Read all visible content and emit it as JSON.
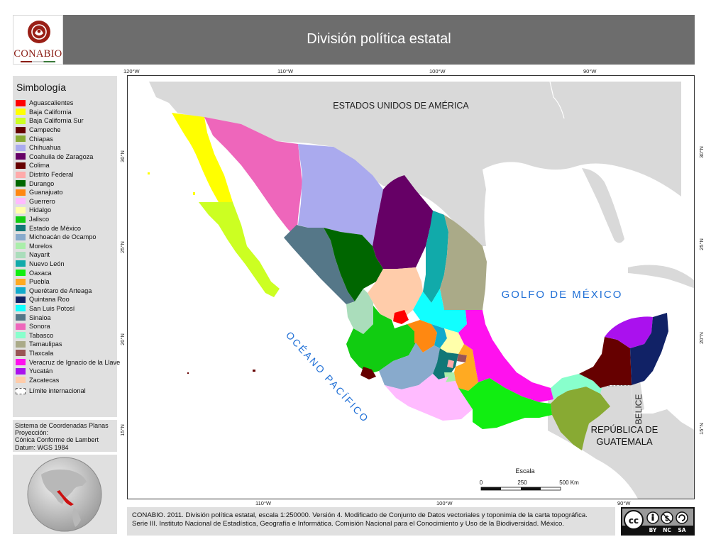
{
  "header": {
    "logo_text": "CONABIO",
    "title": "División política estatal"
  },
  "legend": {
    "title": "Simbología",
    "items": [
      {
        "label": "Aguascalientes",
        "color": "#ff0000"
      },
      {
        "label": "Baja California",
        "color": "#ffff00"
      },
      {
        "label": "Baja California Sur",
        "color": "#ccff22"
      },
      {
        "label": "Campeche",
        "color": "#660000"
      },
      {
        "label": "Chiapas",
        "color": "#88aa33"
      },
      {
        "label": "Chihuahua",
        "color": "#aaaaee"
      },
      {
        "label": "Coahuila de Zaragoza",
        "color": "#660066"
      },
      {
        "label": "Colima",
        "color": "#660000"
      },
      {
        "label": "Distrito Federal",
        "color": "#ffaaaa"
      },
      {
        "label": "Durango",
        "color": "#006600"
      },
      {
        "label": "Guanajuato",
        "color": "#ff8811"
      },
      {
        "label": "Guerrero",
        "color": "#ffbbff"
      },
      {
        "label": "Hidalgo",
        "color": "#ffffaa"
      },
      {
        "label": "Jalisco",
        "color": "#11cc11"
      },
      {
        "label": "Estado de México",
        "color": "#117777"
      },
      {
        "label": "Michoacán de Ocampo",
        "color": "#88aacc"
      },
      {
        "label": "Morelos",
        "color": "#aaeeaa"
      },
      {
        "label": "Nayarit",
        "color": "#aaddbb"
      },
      {
        "label": "Nuevo León",
        "color": "#11aaaa"
      },
      {
        "label": "Oaxaca",
        "color": "#11ee11"
      },
      {
        "label": "Puebla",
        "color": "#ffaa22"
      },
      {
        "label": "Querétaro de Arteaga",
        "color": "#11aacc"
      },
      {
        "label": "Quintana Roo",
        "color": "#112266"
      },
      {
        "label": "San Luis Potosí",
        "color": "#11ffff"
      },
      {
        "label": "Sinaloa",
        "color": "#557788"
      },
      {
        "label": "Sonora",
        "color": "#ee66bb"
      },
      {
        "label": "Tabasco",
        "color": "#88ffcc"
      },
      {
        "label": "Tamaulipas",
        "color": "#aaaa88"
      },
      {
        "label": "Tlaxcala",
        "color": "#995555"
      },
      {
        "label": "Veracruz de Ignacio de la Llave",
        "color": "#ff11ee"
      },
      {
        "label": "Yucatán",
        "color": "#aa11ee"
      },
      {
        "label": "Zacatecas",
        "color": "#ffccaa"
      }
    ],
    "limit_label": "Límite internacional"
  },
  "projection": {
    "lines": [
      "Sistema de Coordenadas Planas",
      "Proyección:",
      "Cónica Conforme de Lambert",
      "Datum: WGS 1984"
    ]
  },
  "map": {
    "labels": {
      "usa": "ESTADOS UNIDOS DE AMÉRICA",
      "gulf": "GOLFO DE MÉXICO",
      "pacific": "OCÉANO PACÍFICO",
      "belize": "BELICE",
      "guatemala_1": "REPÚBLICA DE",
      "guatemala_2": "GUATEMALA"
    },
    "top_ticks": [
      "120°W",
      "110°W",
      "100°W",
      "90°W"
    ],
    "bottom_ticks": [
      "110°W",
      "100°W",
      "90°W"
    ],
    "left_ticks": [
      "30°N",
      "25°N",
      "20°N",
      "15°N"
    ],
    "right_ticks": [
      "30°N",
      "25°N",
      "20°N",
      "15°N"
    ],
    "scale": {
      "title": "Escala",
      "marks": [
        "0",
        "250",
        "500 Km"
      ]
    },
    "colors": {
      "land_other": "#d9d9d9",
      "water": "#ffffff",
      "ocean_label": "#1f6fd6"
    }
  },
  "credits": {
    "lines": [
      "CONABIO. 2011. División política estatal, escala 1:250000. Versión 4. Modificado de Conjunto de Datos vectoriales y toponimia de la carta topográfica.",
      "Serie III. Instituto Nacional de Estadística, Geografía e Informática. Comisión Nacional para el Conocimiento y Uso de la Biodiversidad. México."
    ]
  },
  "license": {
    "badge": "cc",
    "terms": [
      "BY",
      "NC",
      "SA"
    ]
  }
}
